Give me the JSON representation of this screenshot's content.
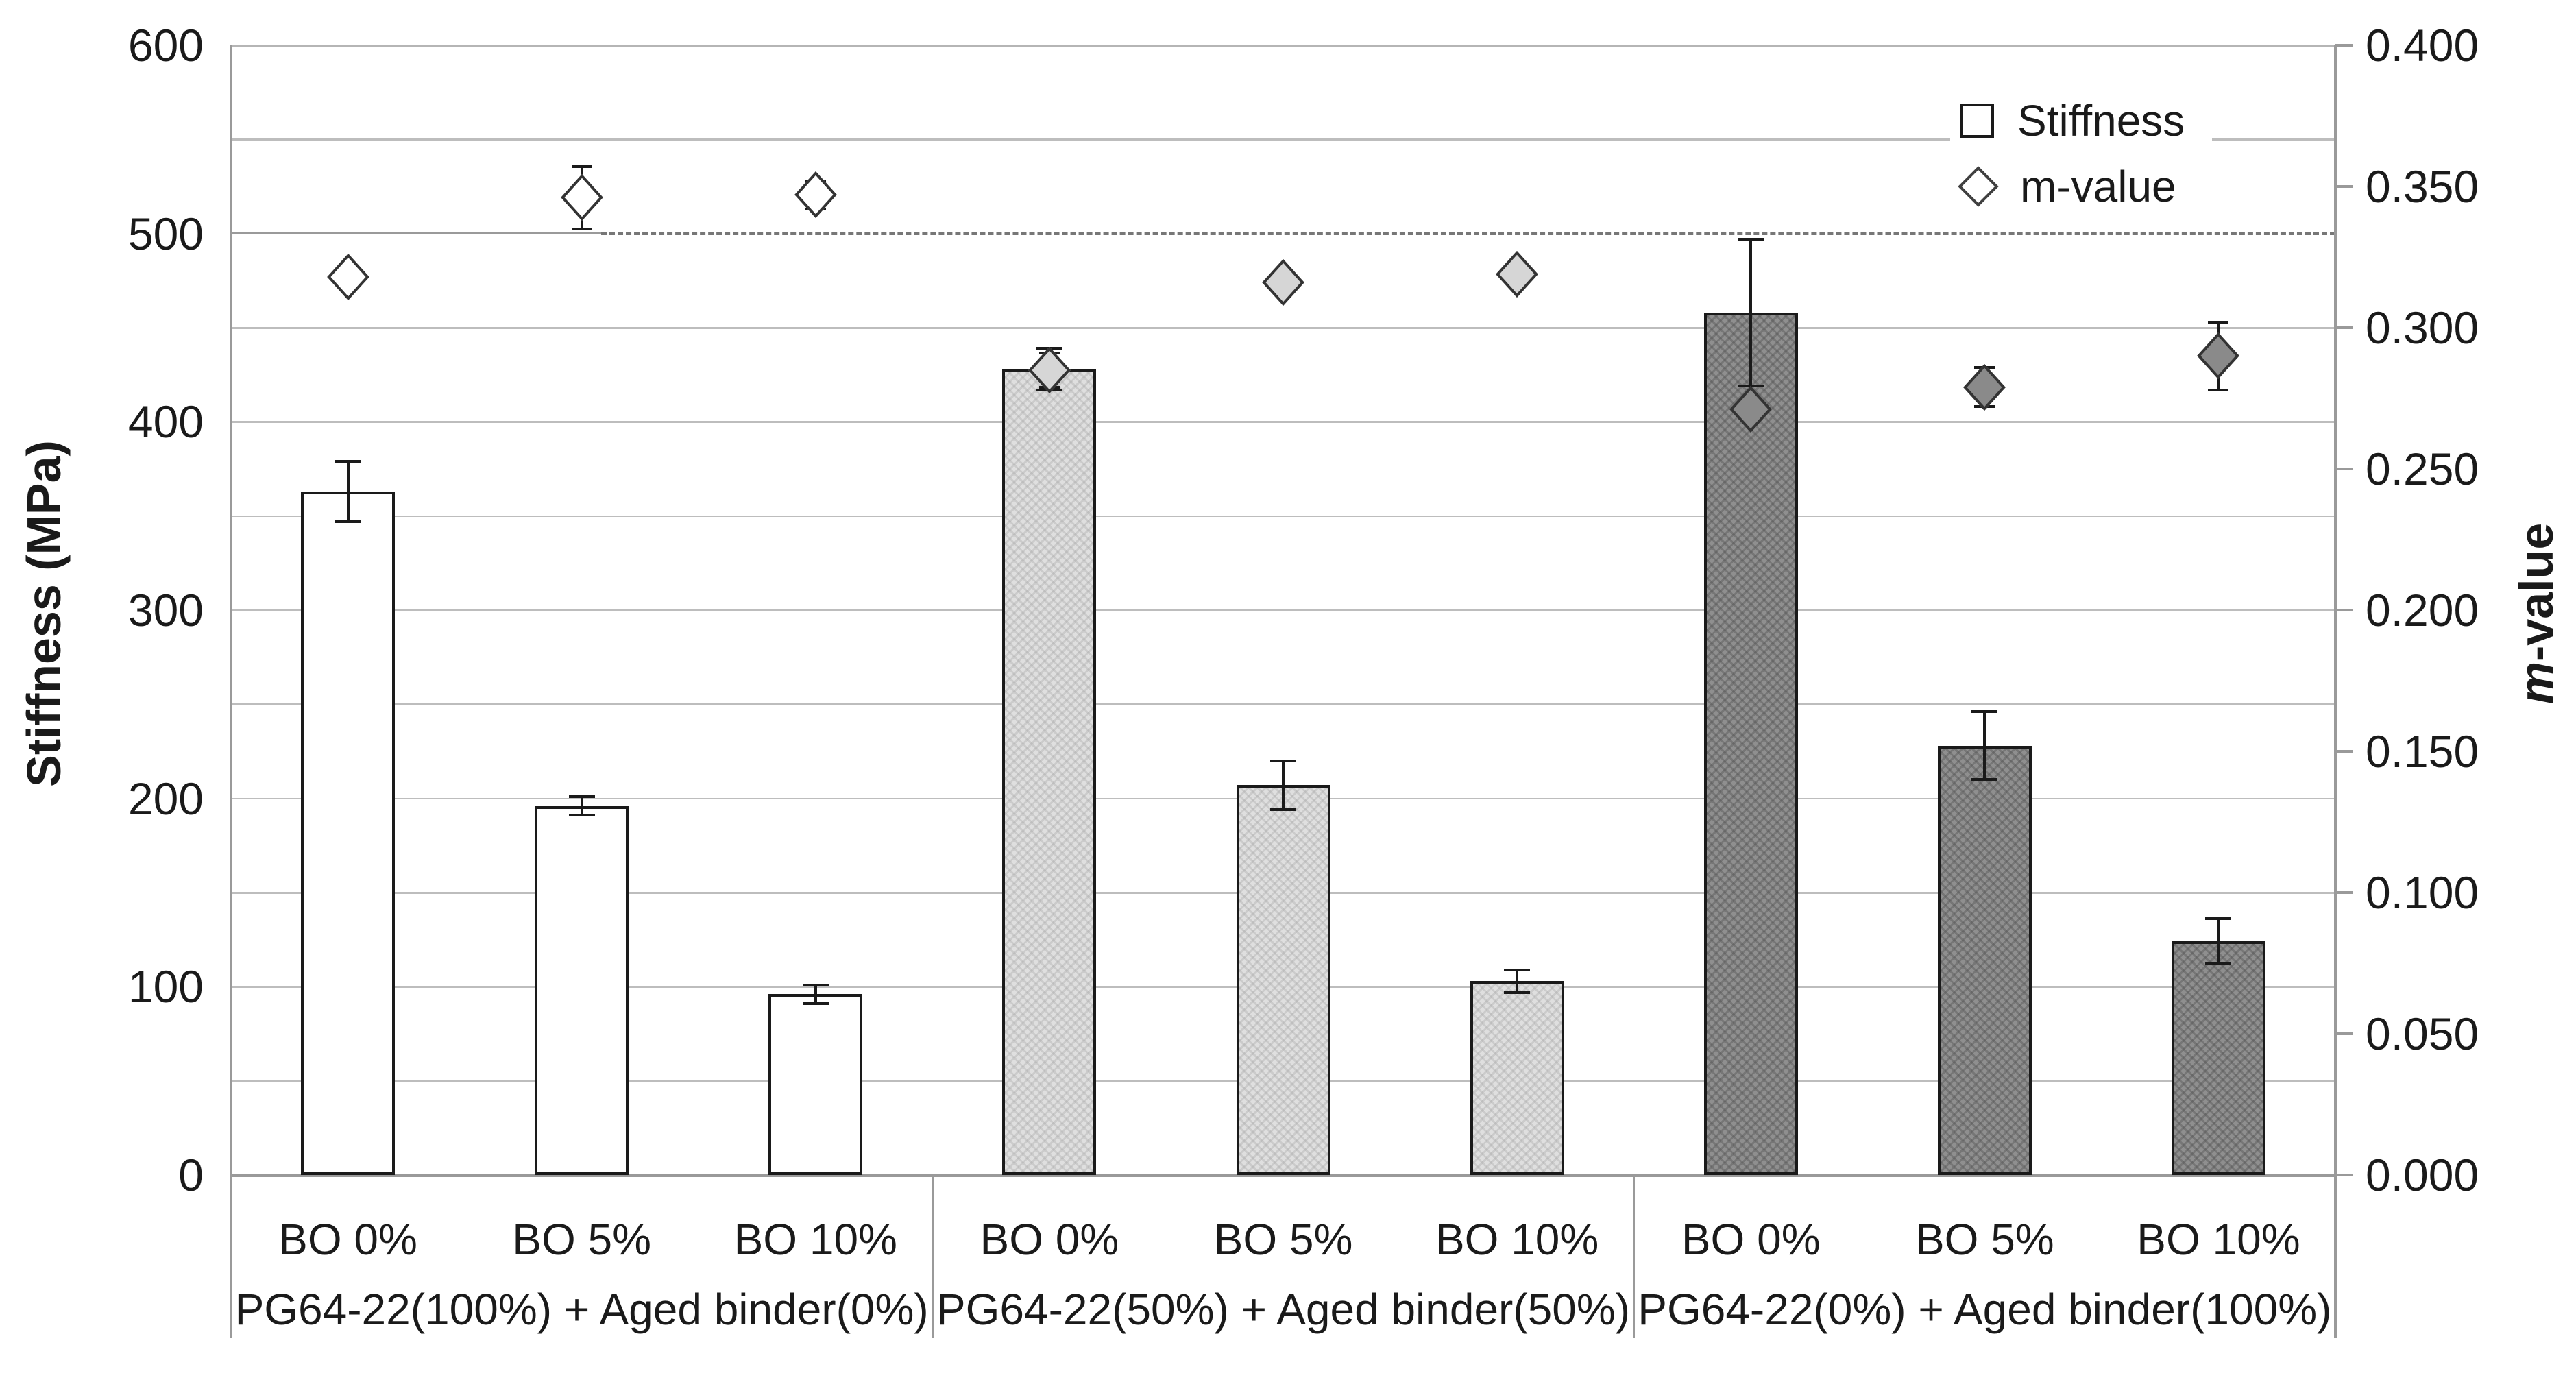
{
  "chart_data": {
    "type": "bar",
    "subtype": "grouped-bars-with-scatter-overlay-dual-axis",
    "title": "",
    "grid": "horizontal, every 50 MPa, solid light gray",
    "left_axis": {
      "title": "Stiffness (MPa)",
      "min": 0,
      "max": 600,
      "major_tick": 100,
      "minor_grid": 50,
      "tick_labels": [
        "600",
        "500",
        "400",
        "300",
        "200",
        "100",
        "0"
      ],
      "tick_values": [
        600,
        500,
        400,
        300,
        200,
        100,
        0
      ]
    },
    "right_axis": {
      "title_italic": "m",
      "title_rest": "-value",
      "min": 0.0,
      "max": 0.4,
      "major_tick": 0.05,
      "tick_labels": [
        "0.400",
        "0.350",
        "0.300",
        "0.250",
        "0.200",
        "0.150",
        "0.100",
        "0.050",
        "0.000"
      ],
      "tick_values": [
        0.4,
        0.35,
        0.3,
        0.25,
        0.2,
        0.15,
        0.1,
        0.05,
        0.0
      ]
    },
    "categories": [
      "BO 0%",
      "BO 5%",
      "BO 10%"
    ],
    "groups": [
      {
        "label": "PG64-22(100%) + Aged binder(0%)",
        "stiffness_values": [
          363,
          196,
          96
        ],
        "stiffness_errors": [
          16,
          5,
          5
        ],
        "m_values": [
          0.318,
          0.346,
          0.347
        ],
        "m_errors": [
          0,
          0.011,
          0.005
        ],
        "bar_fill": "#ffffff",
        "marker_fill": "#ffffff"
      },
      {
        "label": "PG64-22(50%) + Aged binder(50%)",
        "stiffness_values": [
          428,
          207,
          103
        ],
        "stiffness_errors": [
          11,
          13,
          6
        ],
        "m_values": [
          0.285,
          0.316,
          0.319
        ],
        "m_errors": [
          0.006,
          0,
          0
        ],
        "bar_fill": "#dfdfdf",
        "marker_fill": "#d6d6d6"
      },
      {
        "label": "PG64-22(0%) + Aged binder(100%)",
        "stiffness_values": [
          458,
          228,
          124
        ],
        "stiffness_errors": [
          39,
          18,
          12
        ],
        "m_values": [
          0.271,
          0.279,
          0.29
        ],
        "m_errors": [
          0,
          0.007,
          0.012
        ],
        "bar_fill": "#8f8f8f",
        "marker_fill": "#8a8a8a"
      }
    ],
    "reference_line": {
      "left_axis_level": 500,
      "right_axis_level": 0.333,
      "style": "dashed",
      "note": "solid gray segment on left ~18% of plot width, dashed gray to right edge"
    },
    "legend": {
      "items": [
        {
          "label": "Stiffness",
          "marker": "square-outline"
        },
        {
          "label": "m-value",
          "marker": "diamond-outline"
        }
      ],
      "position": "top-right-inside-plot"
    },
    "error_bars": "vertical black lines with end caps on bars and diamond markers"
  },
  "colors": {
    "background": "#ffffff",
    "gridline": "#bdbdbd",
    "axis_line": "#9a9a9a",
    "bar_border": "#1a1a1a",
    "marker_border": "#333333",
    "reference_dash": "#777777",
    "text": "#1a1a1a",
    "bar_fills": [
      "#ffffff",
      "#dfdfdf",
      "#8f8f8f"
    ],
    "marker_fills": [
      "#ffffff",
      "#d6d6d6",
      "#8a8a8a"
    ]
  }
}
